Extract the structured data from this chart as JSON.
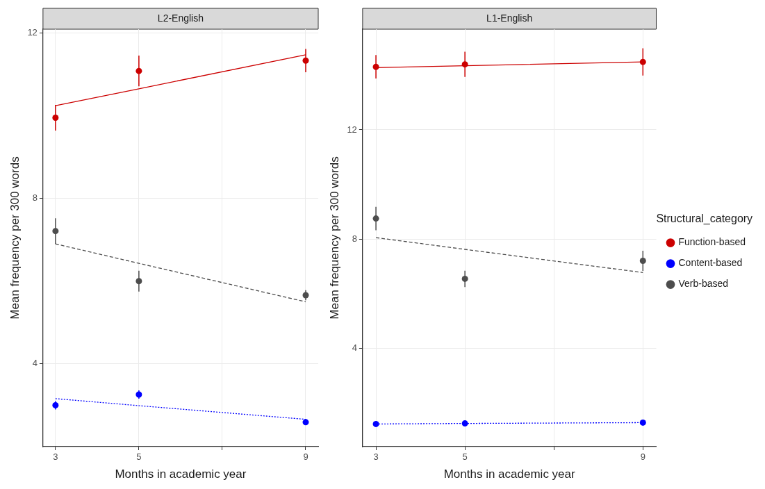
{
  "chart_data": [
    {
      "type": "scatter",
      "title": "L2-English",
      "xlabel": "Months in academic year",
      "ylabel": "Mean frequency per 300 words",
      "x": [
        3,
        5,
        9
      ],
      "xlim": [
        2.7,
        9.3
      ],
      "xticks": [
        3,
        5,
        {
          "value": 7,
          "label": null
        },
        9
      ],
      "ylim": [
        2.0,
        12.09
      ],
      "yticks": [
        4,
        8,
        12
      ],
      "grid": true,
      "marker": "circle",
      "series": [
        {
          "color": "#cc0000",
          "values": [
            9.95,
            11.08,
            11.33
          ],
          "errors": [
            0.31,
            0.37,
            0.28
          ]
        },
        {
          "color": "#0000ff",
          "values": [
            3.0,
            3.26,
            2.59
          ],
          "errors": [
            0.1,
            0.1,
            0.06
          ]
        },
        {
          "color": "#4d4d4d",
          "values": [
            7.21,
            6.0,
            5.66
          ],
          "errors": [
            0.31,
            0.25,
            0.12
          ]
        },
        {
          "type": "line",
          "color": "#cc0000",
          "values": [
            10.24,
            10.65,
            11.47
          ],
          "line_style": "solid",
          "marker": "none"
        },
        {
          "type": "line",
          "color": "#0000ff",
          "values": [
            3.16,
            2.99,
            2.66
          ],
          "line_style": "dotted",
          "marker": "none"
        },
        {
          "type": "line",
          "color": "#4d4d4d",
          "values": [
            6.9,
            6.43,
            5.5
          ],
          "line_style": "dashed",
          "marker": "none"
        }
      ]
    },
    {
      "type": "scatter",
      "title": "L1-English",
      "xlabel": "Months in academic year",
      "ylabel": "Mean frequency per 300 words",
      "x": [
        3,
        5,
        9
      ],
      "xlim": [
        2.7,
        9.3
      ],
      "xticks": [
        3,
        5,
        {
          "value": 7,
          "label": null
        },
        9
      ],
      "ylim": [
        0.39,
        15.69
      ],
      "yticks": [
        4,
        8,
        12
      ],
      "grid": true,
      "marker": "circle",
      "legend": "right",
      "legend_title": "Structural_category",
      "series": [
        {
          "name": "Function-based",
          "color": "#cc0000",
          "values": [
            14.31,
            14.4,
            14.49
          ],
          "errors": [
            0.43,
            0.46,
            0.5
          ]
        },
        {
          "name": "Content-based",
          "color": "#0000ff",
          "values": [
            1.22,
            1.24,
            1.27
          ],
          "errors": [
            0.06,
            0.06,
            0.06
          ]
        },
        {
          "name": "Verb-based",
          "color": "#4d4d4d",
          "values": [
            8.75,
            6.54,
            7.2
          ],
          "errors": [
            0.43,
            0.3,
            0.37
          ]
        },
        {
          "type": "line",
          "color": "#cc0000",
          "values": [
            14.28,
            14.35,
            14.49
          ],
          "line_style": "solid",
          "marker": "none"
        },
        {
          "type": "line",
          "color": "#0000ff",
          "values": [
            1.22,
            1.24,
            1.27
          ],
          "line_style": "dotted",
          "marker": "none"
        },
        {
          "type": "line",
          "color": "#4d4d4d",
          "values": [
            8.05,
            7.62,
            6.77
          ],
          "line_style": "dashed",
          "marker": "none"
        }
      ]
    }
  ]
}
